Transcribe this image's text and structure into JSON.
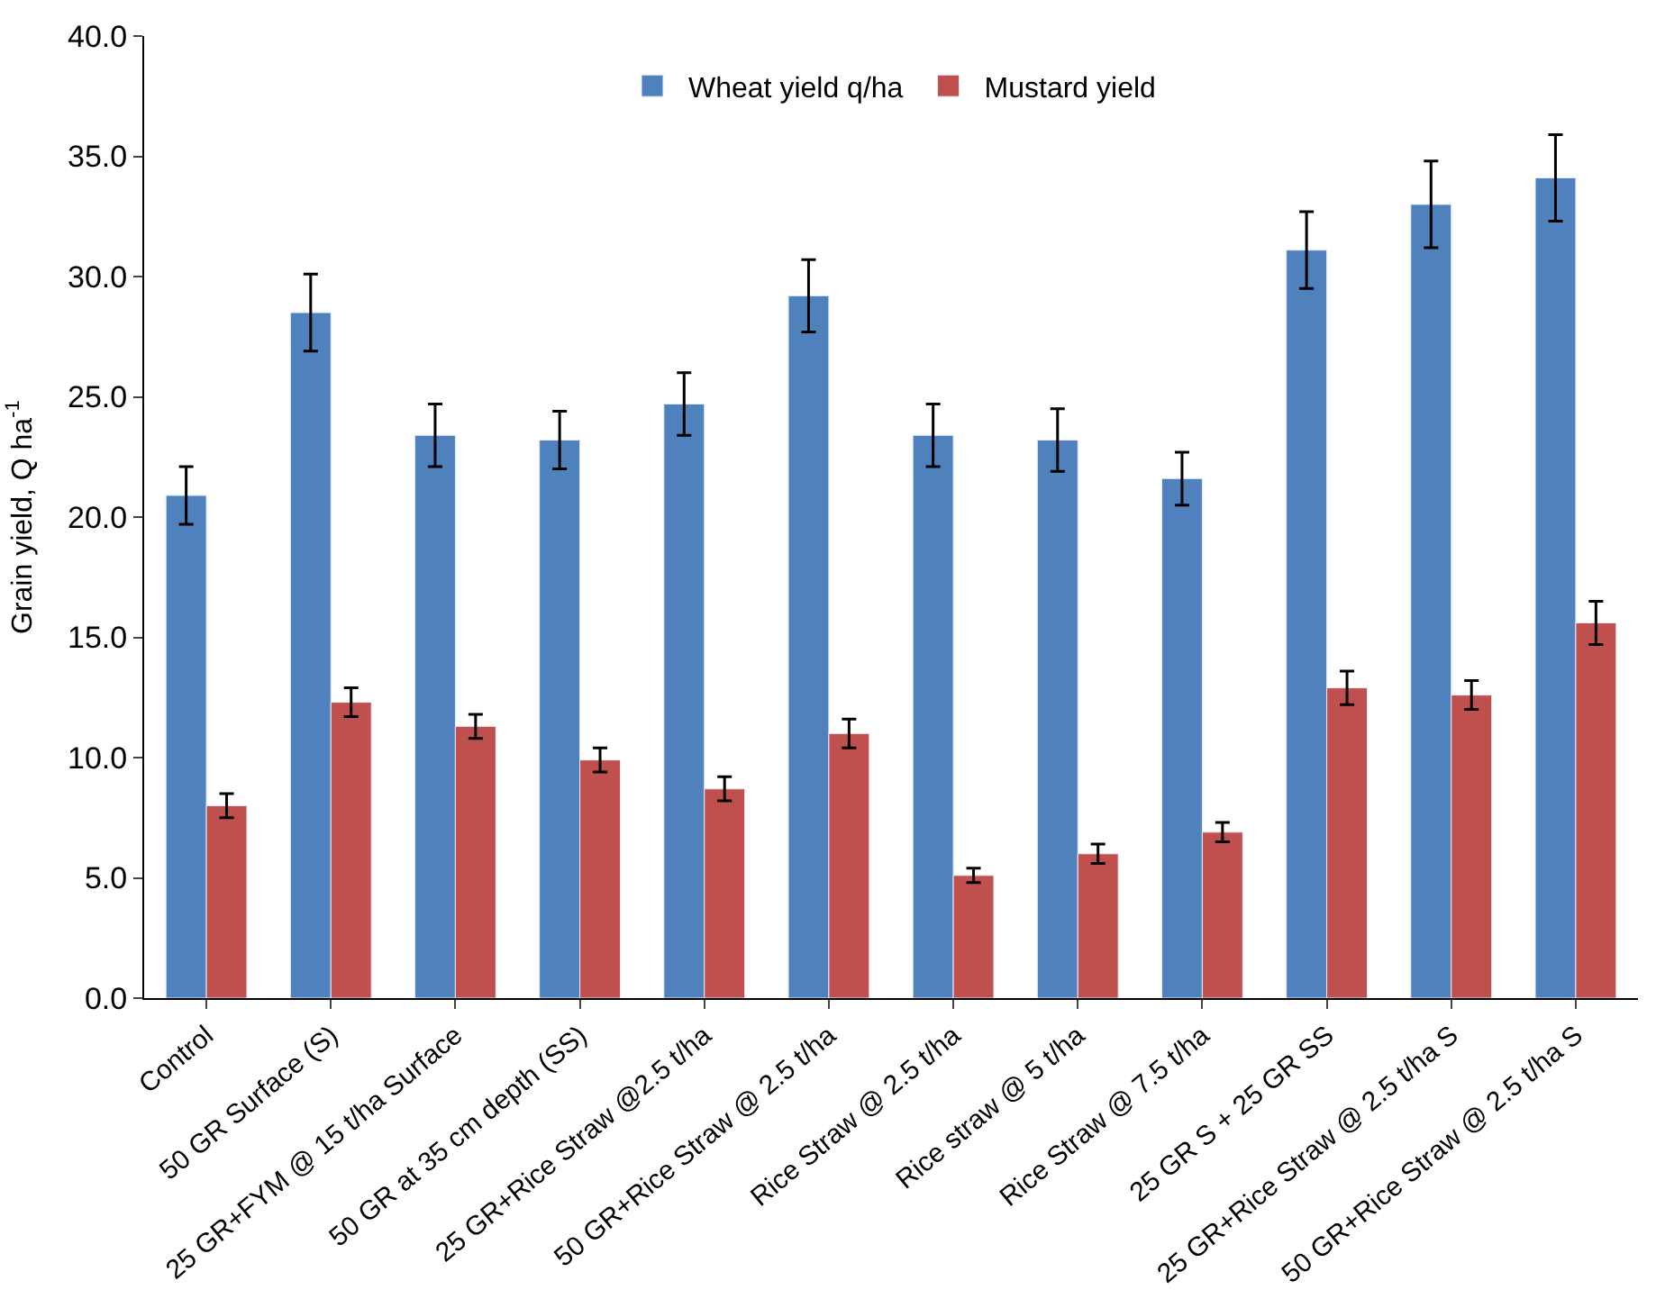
{
  "chart_data": {
    "type": "bar",
    "ylabel": "Grain yield, Q ha$^{-1}$",
    "categories": [
      "Control",
      "50 GR Surface (S)",
      "25 GR+FYM @ 15 t/ha Surface",
      "50 GR at 35 cm depth (SS)",
      "25 GR+Rice Straw @2.5 t/ha",
      "50 GR+Rice Straw @ 2.5 t/ha",
      "Rice Straw @ 2.5 t/ha",
      "Rice straw @ 5 t/ha",
      "Rice Straw @ 7.5 t/ha",
      "25 GR S + 25 GR SS",
      "25 GR+Rice Straw @ 2.5 t/ha S",
      "50 GR+Rice Straw @ 2.5 t/ha S"
    ],
    "series": [
      {
        "name": "Wheat yield q/ha",
        "color": "#4f81bd",
        "values": [
          20.9,
          28.5,
          23.4,
          23.2,
          24.7,
          29.2,
          23.4,
          23.2,
          21.6,
          31.1,
          33.0,
          34.1
        ],
        "errors": [
          1.2,
          1.6,
          1.3,
          1.2,
          1.3,
          1.5,
          1.3,
          1.3,
          1.1,
          1.6,
          1.8,
          1.8
        ]
      },
      {
        "name": "Mustard yield",
        "color": "#c0504d",
        "values": [
          8.0,
          12.3,
          11.3,
          9.9,
          8.7,
          11.0,
          5.1,
          6.0,
          6.9,
          12.9,
          12.6,
          15.6
        ],
        "errors": [
          0.5,
          0.6,
          0.5,
          0.5,
          0.5,
          0.6,
          0.3,
          0.4,
          0.4,
          0.7,
          0.6,
          0.9
        ]
      }
    ],
    "ylim": [
      0,
      40
    ],
    "yticks": [
      {
        "value": 0,
        "label": "0.0"
      },
      {
        "value": 5,
        "label": "5.0"
      },
      {
        "value": 10,
        "label": "10.0"
      },
      {
        "value": 15,
        "label": "15.0"
      },
      {
        "value": 20,
        "label": "20.0"
      },
      {
        "value": 25,
        "label": "25.0"
      },
      {
        "value": 30,
        "label": "30.0"
      },
      {
        "value": 35,
        "label": "35.0"
      },
      {
        "value": 40,
        "label": "40.0"
      }
    ],
    "legend": "top"
  }
}
